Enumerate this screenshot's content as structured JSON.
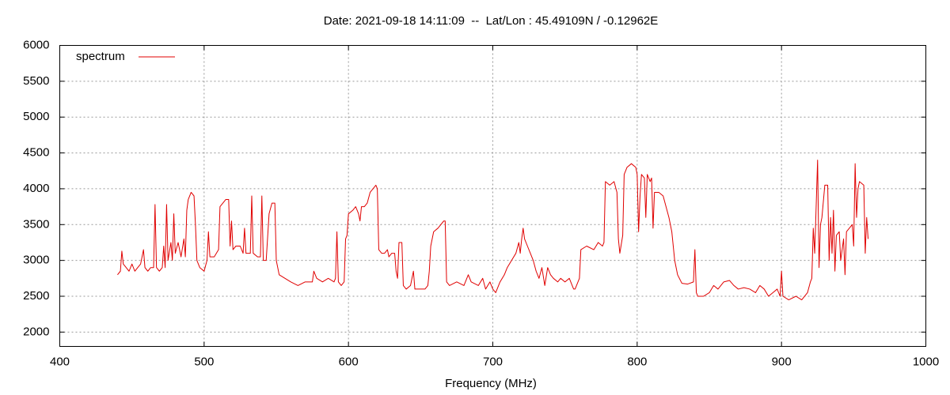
{
  "chart_data": {
    "type": "line",
    "title": "Date: 2021-09-18 14:11:09  --  Lat/Lon : 45.49109N / -0.12962E",
    "x_label": "Frequency (MHz)",
    "x": [
      440,
      442,
      443,
      444,
      446,
      448,
      450,
      452,
      454,
      456,
      458,
      459,
      461,
      463,
      465,
      466,
      467,
      469,
      471,
      472,
      473,
      474,
      475,
      477,
      478,
      479,
      480,
      482,
      484,
      486,
      487,
      488,
      489,
      491,
      493,
      494,
      495,
      497,
      500,
      502,
      503,
      504,
      507,
      510,
      511,
      513,
      515,
      517,
      518,
      519,
      520,
      522,
      525,
      527,
      528,
      529,
      532,
      533,
      534,
      537,
      539,
      540,
      541,
      543,
      545,
      547,
      549,
      550,
      552,
      556,
      560,
      565,
      570,
      575,
      576,
      578,
      582,
      586,
      590,
      591,
      592,
      593,
      595,
      597,
      598,
      599,
      600,
      603,
      605,
      607,
      608,
      609,
      611,
      613,
      615,
      617,
      619,
      620,
      621,
      623,
      625,
      627,
      628,
      630,
      632,
      633,
      634,
      635,
      637,
      638,
      640,
      643,
      645,
      646,
      650,
      653,
      655,
      656,
      657,
      659,
      662,
      664,
      666,
      667,
      668,
      670,
      675,
      680,
      683,
      685,
      690,
      693,
      695,
      698,
      700,
      702,
      705,
      708,
      710,
      713,
      716,
      718,
      719,
      720,
      721,
      722,
      724,
      726,
      728,
      730,
      732,
      734,
      736,
      738,
      740,
      742,
      745,
      747,
      750,
      753,
      755,
      756,
      757,
      760,
      761,
      765,
      770,
      773,
      776,
      777,
      778,
      781,
      784,
      786,
      787,
      788,
      790,
      791,
      793,
      796,
      799,
      800,
      801,
      802,
      803,
      805,
      806,
      807,
      809,
      810,
      811,
      812,
      815,
      818,
      820,
      822,
      824,
      826,
      828,
      831,
      835,
      839,
      840,
      841,
      842,
      846,
      850,
      853,
      856,
      860,
      864,
      867,
      870,
      874,
      878,
      882,
      885,
      888,
      891,
      894,
      897,
      899,
      900,
      901,
      905,
      910,
      914,
      918,
      920,
      921,
      922,
      923,
      925,
      926,
      927,
      928,
      930,
      932,
      933,
      934,
      935,
      936,
      937,
      938,
      940,
      941,
      943,
      944,
      945,
      947,
      949,
      950,
      951,
      952,
      953,
      954,
      957,
      958,
      959,
      960
    ],
    "series": [
      {
        "name": "spectrum",
        "color": "#e00000",
        "values": [
          2800,
          2850,
          3130,
          2950,
          2900,
          2850,
          2950,
          2850,
          2900,
          2950,
          3150,
          2900,
          2850,
          2900,
          2900,
          3780,
          2900,
          2850,
          2900,
          3200,
          2900,
          3780,
          3000,
          3250,
          3000,
          3650,
          3100,
          3250,
          3050,
          3300,
          3050,
          3700,
          3850,
          3950,
          3900,
          3500,
          3000,
          2900,
          2850,
          3000,
          3400,
          3050,
          3050,
          3150,
          3750,
          3800,
          3850,
          3850,
          3200,
          3550,
          3150,
          3200,
          3200,
          3100,
          3450,
          3100,
          3100,
          3900,
          3100,
          3050,
          3050,
          3900,
          3000,
          3000,
          3650,
          3800,
          3800,
          3000,
          2800,
          2750,
          2700,
          2650,
          2700,
          2700,
          2850,
          2750,
          2700,
          2750,
          2700,
          2750,
          3400,
          2700,
          2650,
          2700,
          3300,
          3350,
          3650,
          3700,
          3750,
          3650,
          3550,
          3750,
          3750,
          3800,
          3950,
          4000,
          4050,
          4000,
          3150,
          3100,
          3100,
          3150,
          3050,
          3100,
          3100,
          2850,
          2750,
          3250,
          3250,
          2650,
          2600,
          2650,
          2850,
          2600,
          2600,
          2600,
          2650,
          2850,
          3200,
          3400,
          3450,
          3500,
          3550,
          3550,
          2700,
          2650,
          2700,
          2650,
          2800,
          2700,
          2650,
          2750,
          2600,
          2700,
          2600,
          2550,
          2700,
          2800,
          2900,
          3000,
          3100,
          3250,
          3100,
          3300,
          3450,
          3300,
          3200,
          3100,
          3000,
          2850,
          2750,
          2900,
          2650,
          2900,
          2800,
          2750,
          2700,
          2750,
          2700,
          2750,
          2650,
          2600,
          2600,
          2750,
          3150,
          3200,
          3150,
          3250,
          3200,
          3250,
          4100,
          4050,
          4100,
          3950,
          3300,
          3100,
          3350,
          4200,
          4300,
          4350,
          4300,
          4200,
          3400,
          3900,
          4200,
          4150,
          3600,
          4200,
          4100,
          4150,
          3450,
          3950,
          3950,
          3900,
          3750,
          3600,
          3400,
          3000,
          2800,
          2680,
          2670,
          2700,
          3150,
          2550,
          2500,
          2500,
          2550,
          2650,
          2600,
          2700,
          2720,
          2650,
          2600,
          2620,
          2600,
          2550,
          2650,
          2600,
          2500,
          2550,
          2600,
          2500,
          2850,
          2500,
          2450,
          2500,
          2450,
          2550,
          2700,
          2750,
          3450,
          3100,
          4400,
          2900,
          3500,
          3600,
          4050,
          4050,
          3000,
          3600,
          3100,
          3700,
          2850,
          3350,
          3400,
          3000,
          3300,
          2800,
          3400,
          3450,
          3500,
          3200,
          4350,
          3600,
          4000,
          4100,
          4050,
          3100,
          3600,
          3300
        ]
      }
    ],
    "xlim": [
      400,
      1000
    ],
    "xticks": [
      400,
      500,
      600,
      700,
      800,
      900,
      1000
    ],
    "ylim": [
      1800,
      6000
    ],
    "yticks": [
      2000,
      2500,
      3000,
      3500,
      4000,
      4500,
      5000,
      5500,
      6000
    ],
    "grid": true,
    "legend": "upper left"
  }
}
